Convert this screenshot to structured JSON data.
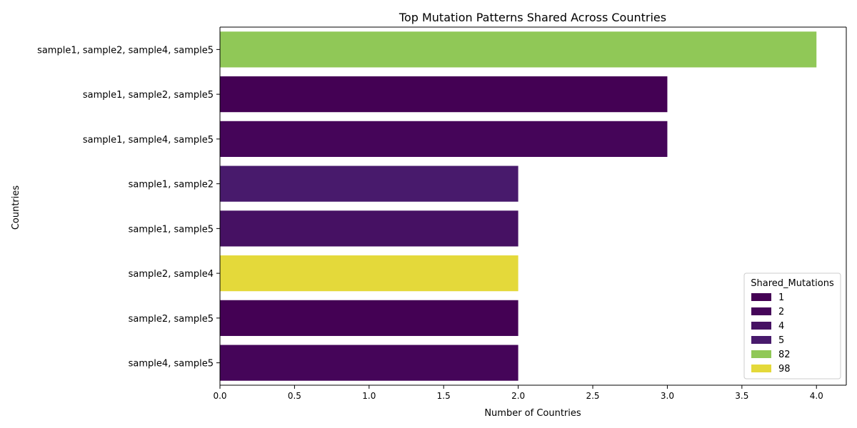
{
  "chart_data": {
    "type": "bar",
    "orientation": "horizontal",
    "title": "Top Mutation Patterns Shared Across Countries",
    "xlabel": "Number of Countries",
    "ylabel": "Countries",
    "xlim": [
      0,
      4.2
    ],
    "xticks": [
      "0.0",
      "0.5",
      "1.0",
      "1.5",
      "2.0",
      "2.5",
      "3.0",
      "3.5",
      "4.0"
    ],
    "grid": false,
    "categories": [
      "sample1, sample2, sample4, sample5",
      "sample1, sample2, sample5",
      "sample1, sample4, sample5",
      "sample1, sample2",
      "sample1, sample5",
      "sample2, sample4",
      "sample2, sample5",
      "sample4, sample5"
    ],
    "values": [
      4,
      3,
      3,
      2,
      2,
      2,
      2,
      2
    ],
    "shared_mutations": [
      "82",
      "1",
      "2",
      "5",
      "4",
      "98",
      "1",
      "2"
    ],
    "legend": {
      "title": "Shared_Mutations",
      "placement": "lower-right",
      "entries": [
        {
          "label": "1",
          "color": "#440154"
        },
        {
          "label": "2",
          "color": "#450559"
        },
        {
          "label": "4",
          "color": "#461163"
        },
        {
          "label": "5",
          "color": "#481a6c"
        },
        {
          "label": "82",
          "color": "#90c857"
        },
        {
          "label": "98",
          "color": "#e4d93a"
        }
      ]
    }
  }
}
